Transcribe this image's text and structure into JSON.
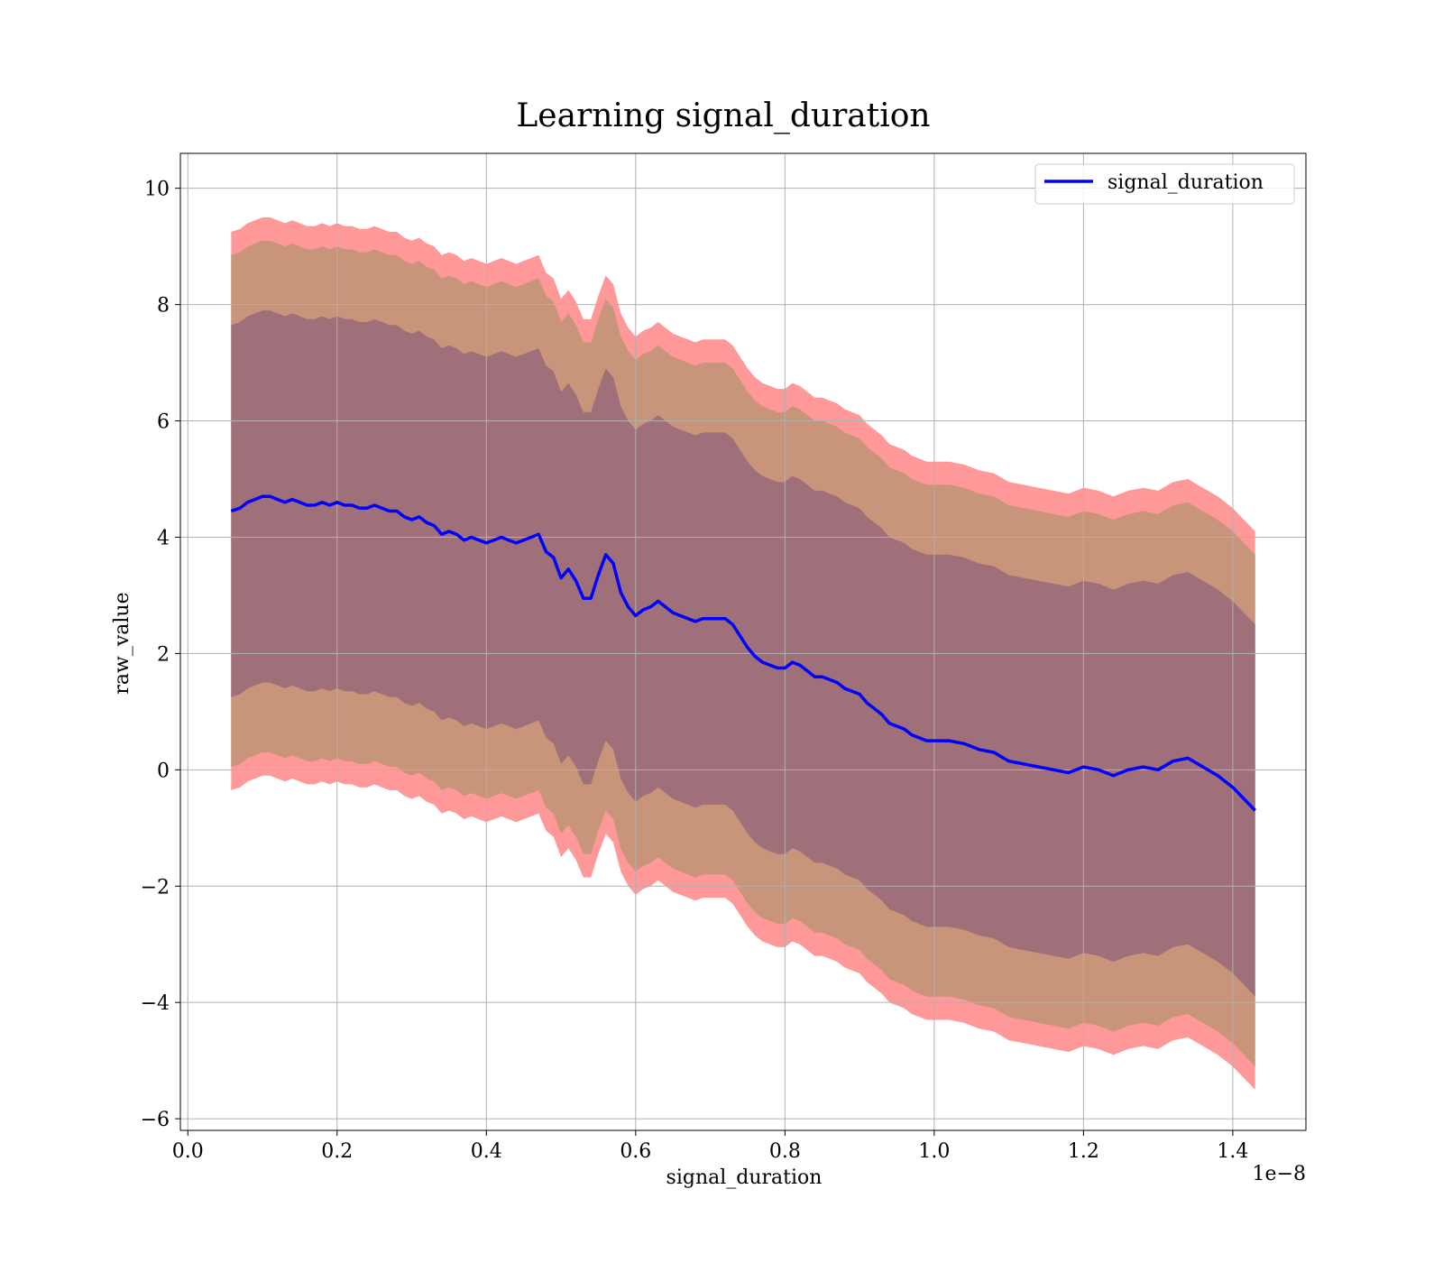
{
  "chart_data": {
    "type": "line",
    "title": "Learning signal_duration",
    "xlabel": "signal_duration",
    "ylabel": "raw_value",
    "x_offset_text": "1e−8",
    "xlim": [
      -0.01,
      1.498
    ],
    "ylim": [
      -6.2,
      10.6
    ],
    "x_ticks": [
      0.0,
      0.2,
      0.4,
      0.6,
      0.8,
      1.0,
      1.2,
      1.4
    ],
    "x_tick_labels": [
      "0.0",
      "0.2",
      "0.4",
      "0.6",
      "0.8",
      "1.0",
      "1.2",
      "1.4"
    ],
    "y_ticks": [
      -6,
      -4,
      -2,
      0,
      2,
      4,
      6,
      8,
      10
    ],
    "y_tick_labels": [
      "−6",
      "−4",
      "−2",
      "0",
      "2",
      "4",
      "6",
      "8",
      "10"
    ],
    "grid": true,
    "legend": {
      "position": "upper right",
      "entries": [
        "signal_duration"
      ]
    },
    "colors": {
      "line": "#0000ff",
      "outer_band": "#ff9999",
      "middle_band": "#c8957a",
      "inner_band": "#a0707a",
      "frame": "#000000",
      "grid": "#b0b0b0"
    },
    "series": [
      {
        "name": "signal_duration",
        "x": [
          0.058,
          0.07,
          0.08,
          0.09,
          0.1,
          0.11,
          0.12,
          0.13,
          0.14,
          0.15,
          0.16,
          0.17,
          0.18,
          0.19,
          0.2,
          0.21,
          0.22,
          0.23,
          0.24,
          0.25,
          0.26,
          0.27,
          0.28,
          0.29,
          0.3,
          0.31,
          0.32,
          0.33,
          0.34,
          0.35,
          0.36,
          0.37,
          0.38,
          0.39,
          0.4,
          0.41,
          0.42,
          0.43,
          0.44,
          0.45,
          0.46,
          0.47,
          0.48,
          0.49,
          0.5,
          0.51,
          0.52,
          0.53,
          0.54,
          0.55,
          0.56,
          0.57,
          0.58,
          0.59,
          0.6,
          0.61,
          0.62,
          0.63,
          0.64,
          0.65,
          0.66,
          0.67,
          0.68,
          0.69,
          0.7,
          0.71,
          0.72,
          0.73,
          0.74,
          0.75,
          0.76,
          0.77,
          0.78,
          0.79,
          0.8,
          0.81,
          0.82,
          0.83,
          0.84,
          0.85,
          0.86,
          0.87,
          0.88,
          0.89,
          0.9,
          0.91,
          0.92,
          0.93,
          0.94,
          0.95,
          0.96,
          0.97,
          0.98,
          0.99,
          1.0,
          1.02,
          1.04,
          1.06,
          1.08,
          1.1,
          1.12,
          1.14,
          1.16,
          1.18,
          1.2,
          1.22,
          1.24,
          1.26,
          1.28,
          1.3,
          1.32,
          1.34,
          1.36,
          1.38,
          1.4,
          1.43
        ],
        "mean": [
          4.45,
          4.5,
          4.6,
          4.65,
          4.7,
          4.7,
          4.65,
          4.6,
          4.65,
          4.6,
          4.55,
          4.55,
          4.6,
          4.55,
          4.6,
          4.55,
          4.55,
          4.5,
          4.5,
          4.55,
          4.5,
          4.45,
          4.45,
          4.35,
          4.3,
          4.35,
          4.25,
          4.2,
          4.05,
          4.1,
          4.05,
          3.95,
          4.0,
          3.95,
          3.9,
          3.95,
          4.0,
          3.95,
          3.9,
          3.95,
          4.0,
          4.05,
          3.75,
          3.65,
          3.3,
          3.45,
          3.25,
          2.95,
          2.95,
          3.35,
          3.7,
          3.55,
          3.05,
          2.8,
          2.65,
          2.75,
          2.8,
          2.9,
          2.8,
          2.7,
          2.65,
          2.6,
          2.55,
          2.6,
          2.6,
          2.6,
          2.6,
          2.5,
          2.3,
          2.1,
          1.95,
          1.85,
          1.8,
          1.75,
          1.75,
          1.85,
          1.8,
          1.7,
          1.6,
          1.6,
          1.55,
          1.5,
          1.4,
          1.35,
          1.3,
          1.15,
          1.05,
          0.95,
          0.8,
          0.75,
          0.7,
          0.6,
          0.55,
          0.5,
          0.5,
          0.5,
          0.45,
          0.35,
          0.3,
          0.15,
          0.1,
          0.05,
          0.0,
          -0.05,
          0.05,
          0.0,
          -0.1,
          0.0,
          0.05,
          0.0,
          0.15,
          0.2,
          0.05,
          -0.1,
          -0.3,
          -0.7
        ],
        "inner_band_half_width": [
          3.2,
          3.2,
          3.2,
          3.2,
          3.2,
          3.2,
          3.2,
          3.2,
          3.2,
          3.2,
          3.2,
          3.2,
          3.2,
          3.2,
          3.2,
          3.2,
          3.2,
          3.2,
          3.2,
          3.2,
          3.2,
          3.2,
          3.2,
          3.2,
          3.2,
          3.2,
          3.2,
          3.2,
          3.2,
          3.2,
          3.2,
          3.2,
          3.2,
          3.2,
          3.2,
          3.2,
          3.2,
          3.2,
          3.2,
          3.2,
          3.2,
          3.2,
          3.2,
          3.2,
          3.2,
          3.2,
          3.2,
          3.2,
          3.2,
          3.2,
          3.2,
          3.2,
          3.2,
          3.2,
          3.2,
          3.2,
          3.2,
          3.2,
          3.2,
          3.2,
          3.2,
          3.2,
          3.2,
          3.2,
          3.2,
          3.2,
          3.2,
          3.2,
          3.2,
          3.2,
          3.2,
          3.2,
          3.2,
          3.2,
          3.2,
          3.2,
          3.2,
          3.2,
          3.2,
          3.2,
          3.2,
          3.2,
          3.2,
          3.2,
          3.2,
          3.2,
          3.2,
          3.2,
          3.2,
          3.2,
          3.2,
          3.2,
          3.2,
          3.2,
          3.2,
          3.2,
          3.2,
          3.2,
          3.2,
          3.2,
          3.2,
          3.2,
          3.2,
          3.2,
          3.2,
          3.2,
          3.2,
          3.2,
          3.2,
          3.2,
          3.2,
          3.2,
          3.2,
          3.2,
          3.2,
          3.2
        ],
        "middle_band_half_width": [
          4.4,
          4.4,
          4.4,
          4.4,
          4.4,
          4.4,
          4.4,
          4.4,
          4.4,
          4.4,
          4.4,
          4.4,
          4.4,
          4.4,
          4.4,
          4.4,
          4.4,
          4.4,
          4.4,
          4.4,
          4.4,
          4.4,
          4.4,
          4.4,
          4.4,
          4.4,
          4.4,
          4.4,
          4.4,
          4.4,
          4.4,
          4.4,
          4.4,
          4.4,
          4.4,
          4.4,
          4.4,
          4.4,
          4.4,
          4.4,
          4.4,
          4.4,
          4.4,
          4.4,
          4.4,
          4.4,
          4.4,
          4.4,
          4.4,
          4.4,
          4.4,
          4.4,
          4.4,
          4.4,
          4.4,
          4.4,
          4.4,
          4.4,
          4.4,
          4.4,
          4.4,
          4.4,
          4.4,
          4.4,
          4.4,
          4.4,
          4.4,
          4.4,
          4.4,
          4.4,
          4.4,
          4.4,
          4.4,
          4.4,
          4.4,
          4.4,
          4.4,
          4.4,
          4.4,
          4.4,
          4.4,
          4.4,
          4.4,
          4.4,
          4.4,
          4.4,
          4.4,
          4.4,
          4.4,
          4.4,
          4.4,
          4.4,
          4.4,
          4.4,
          4.4,
          4.4,
          4.4,
          4.4,
          4.4,
          4.4,
          4.4,
          4.4,
          4.4,
          4.4,
          4.4,
          4.4,
          4.4,
          4.4,
          4.4,
          4.4,
          4.4,
          4.4,
          4.4,
          4.4,
          4.4,
          4.4
        ],
        "outer_band_half_width": [
          4.8,
          4.8,
          4.8,
          4.8,
          4.8,
          4.8,
          4.8,
          4.8,
          4.8,
          4.8,
          4.8,
          4.8,
          4.8,
          4.8,
          4.8,
          4.8,
          4.8,
          4.8,
          4.8,
          4.8,
          4.8,
          4.8,
          4.8,
          4.8,
          4.8,
          4.8,
          4.8,
          4.8,
          4.8,
          4.8,
          4.8,
          4.8,
          4.8,
          4.8,
          4.8,
          4.8,
          4.8,
          4.8,
          4.8,
          4.8,
          4.8,
          4.8,
          4.8,
          4.8,
          4.8,
          4.8,
          4.8,
          4.8,
          4.8,
          4.8,
          4.8,
          4.8,
          4.8,
          4.8,
          4.8,
          4.8,
          4.8,
          4.8,
          4.8,
          4.8,
          4.8,
          4.8,
          4.8,
          4.8,
          4.8,
          4.8,
          4.8,
          4.8,
          4.8,
          4.8,
          4.8,
          4.8,
          4.8,
          4.8,
          4.8,
          4.8,
          4.8,
          4.8,
          4.8,
          4.8,
          4.8,
          4.8,
          4.8,
          4.8,
          4.8,
          4.8,
          4.8,
          4.8,
          4.8,
          4.8,
          4.8,
          4.8,
          4.8,
          4.8,
          4.8,
          4.8,
          4.8,
          4.8,
          4.8,
          4.8,
          4.8,
          4.8,
          4.8,
          4.8,
          4.8,
          4.8,
          4.8,
          4.8,
          4.8,
          4.8,
          4.8,
          4.8,
          4.8,
          4.8,
          4.8,
          4.8
        ]
      }
    ]
  }
}
